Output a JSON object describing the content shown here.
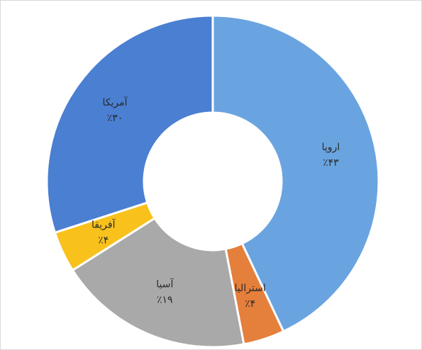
{
  "chart_data": {
    "type": "donut",
    "categories": [
      "اروپا",
      "استرالیا",
      "آسیا",
      "آفریقا",
      "آمریکا"
    ],
    "values": [
      43,
      4,
      19,
      4,
      30
    ],
    "value_labels": [
      "٪۴۳",
      "٪۴",
      "٪۱۹",
      "٪۴",
      "٪۳۰"
    ],
    "colors": [
      "#6aa4e0",
      "#e57f3c",
      "#a9a9a9",
      "#f9c11c",
      "#4a7fd2"
    ]
  }
}
